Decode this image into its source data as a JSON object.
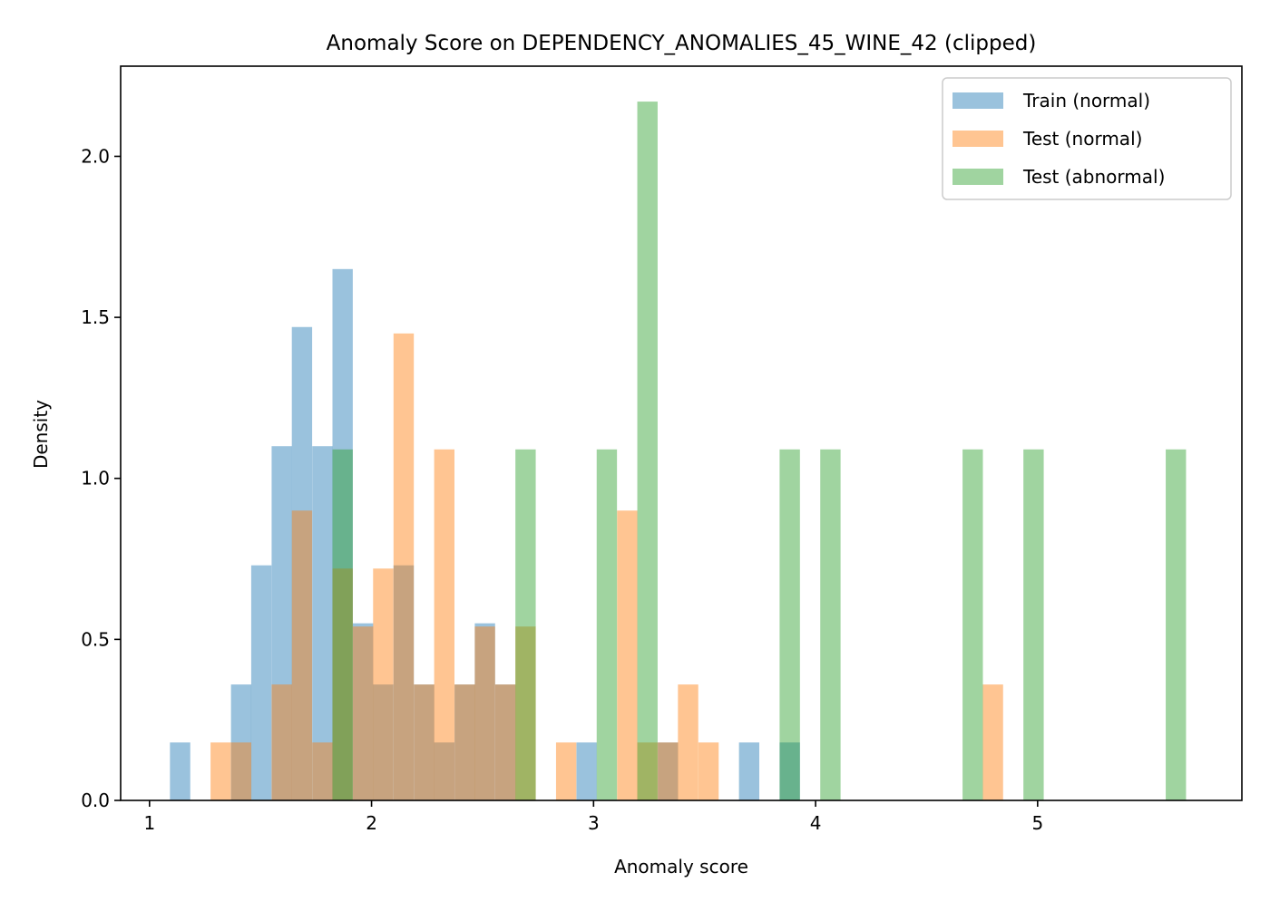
{
  "chart_data": {
    "type": "bar",
    "subtype": "overlapping histogram",
    "title": "Anomaly Score on DEPENDENCY_ANOMALIES_45_WINE_42 (clipped)",
    "xlabel": "Anomaly score",
    "ylabel": "Density",
    "xlim": [
      0.87,
      5.92
    ],
    "ylim": [
      0,
      2.28
    ],
    "xticks": [
      1,
      2,
      3,
      4,
      5
    ],
    "xtick_labels": [
      "1",
      "2",
      "3",
      "4",
      "5"
    ],
    "yticks": [
      0.0,
      0.5,
      1.0,
      1.5,
      2.0
    ],
    "ytick_labels": [
      "0.0",
      "0.5",
      "1.0",
      "1.5",
      "2.0"
    ],
    "grid": false,
    "legend_position": "top-right",
    "bin_width": 0.0915,
    "series": [
      {
        "name": "Train (normal)",
        "color": "#1f77b4",
        "opacity": 0.45,
        "bins": [
          {
            "x0": 1.092,
            "value": 0.18
          },
          {
            "x0": 1.367,
            "value": 0.36
          },
          {
            "x0": 1.458,
            "value": 0.73
          },
          {
            "x0": 1.55,
            "value": 1.1
          },
          {
            "x0": 1.641,
            "value": 1.47
          },
          {
            "x0": 1.733,
            "value": 1.1
          },
          {
            "x0": 1.824,
            "value": 1.65
          },
          {
            "x0": 1.916,
            "value": 0.55
          },
          {
            "x0": 2.007,
            "value": 0.36
          },
          {
            "x0": 2.099,
            "value": 0.73
          },
          {
            "x0": 2.191,
            "value": 0.36
          },
          {
            "x0": 2.282,
            "value": 0.18
          },
          {
            "x0": 2.374,
            "value": 0.36
          },
          {
            "x0": 2.465,
            "value": 0.55
          },
          {
            "x0": 2.557,
            "value": 0.36
          },
          {
            "x0": 2.923,
            "value": 0.18
          },
          {
            "x0": 3.289,
            "value": 0.18
          },
          {
            "x0": 3.655,
            "value": 0.18
          },
          {
            "x0": 3.838,
            "value": 0.18
          }
        ]
      },
      {
        "name": "Test (normal)",
        "color": "#ff7f0e",
        "opacity": 0.45,
        "bins": [
          {
            "x0": 1.275,
            "value": 0.18
          },
          {
            "x0": 1.367,
            "value": 0.18
          },
          {
            "x0": 1.55,
            "value": 0.36
          },
          {
            "x0": 1.641,
            "value": 0.9
          },
          {
            "x0": 1.733,
            "value": 0.18
          },
          {
            "x0": 1.824,
            "value": 0.72
          },
          {
            "x0": 1.916,
            "value": 0.54
          },
          {
            "x0": 2.007,
            "value": 0.72
          },
          {
            "x0": 2.099,
            "value": 1.45
          },
          {
            "x0": 2.191,
            "value": 0.36
          },
          {
            "x0": 2.282,
            "value": 1.09
          },
          {
            "x0": 2.374,
            "value": 0.36
          },
          {
            "x0": 2.465,
            "value": 0.54
          },
          {
            "x0": 2.557,
            "value": 0.36
          },
          {
            "x0": 2.648,
            "value": 0.54
          },
          {
            "x0": 2.831,
            "value": 0.18
          },
          {
            "x0": 3.106,
            "value": 0.9
          },
          {
            "x0": 3.197,
            "value": 0.18
          },
          {
            "x0": 3.289,
            "value": 0.18
          },
          {
            "x0": 3.38,
            "value": 0.36
          },
          {
            "x0": 3.472,
            "value": 0.18
          },
          {
            "x0": 4.753,
            "value": 0.36
          }
        ]
      },
      {
        "name": "Test (abnormal)",
        "color": "#2ca02c",
        "opacity": 0.45,
        "bins": [
          {
            "x0": 1.824,
            "value": 1.09
          },
          {
            "x0": 2.648,
            "value": 1.09
          },
          {
            "x0": 3.014,
            "value": 1.09
          },
          {
            "x0": 3.197,
            "value": 2.17
          },
          {
            "x0": 3.838,
            "value": 1.09
          },
          {
            "x0": 4.021,
            "value": 1.09
          },
          {
            "x0": 4.662,
            "value": 1.09
          },
          {
            "x0": 4.936,
            "value": 1.09
          },
          {
            "x0": 5.577,
            "value": 1.09
          }
        ]
      }
    ]
  }
}
